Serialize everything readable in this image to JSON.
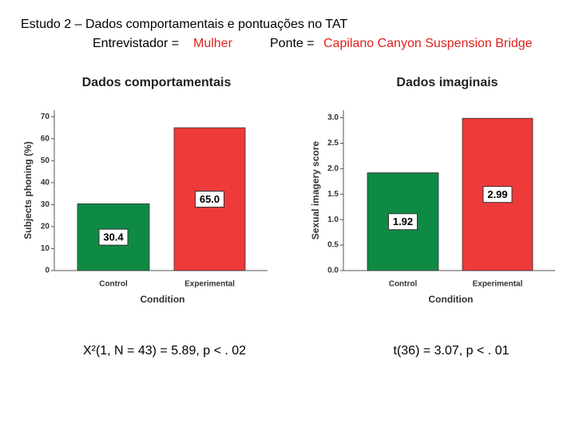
{
  "header": {
    "title": "Estudo 2 – Dados comportamentais e pontuações no TAT",
    "interviewer_label": "Entrevistador =",
    "interviewer": "Mulher",
    "bridge_label": "Ponte =",
    "bridge": "Capilano Canyon Suspension Bridge"
  },
  "chart_data": [
    {
      "type": "bar",
      "title": "Dados comportamentais",
      "y_label": "Subjects phoning (%)",
      "x_label": "Condition",
      "categories": [
        "Control",
        "Experimental"
      ],
      "values": [
        30.4,
        65.0
      ],
      "value_labels": [
        "30.4",
        "65.0"
      ],
      "colors": [
        "#0f8a45",
        "#ef3a3a"
      ],
      "ylim": [
        0,
        73
      ],
      "yticks": [
        0,
        10,
        20,
        30,
        40,
        50,
        60,
        70
      ],
      "stat": "Χ²(1, N = 43) = 5.89, p < . 02"
    },
    {
      "type": "bar",
      "title": "Dados imaginais",
      "y_label": "Sexual imagery score",
      "x_label": "Condition",
      "categories": [
        "Control",
        "Experimental"
      ],
      "values": [
        1.92,
        2.99
      ],
      "value_labels": [
        "1.92",
        "2.99"
      ],
      "colors": [
        "#0f8a45",
        "#ef3a3a"
      ],
      "ylim": [
        0,
        3.15
      ],
      "yticks": [
        {
          "value": 0,
          "label": "0.0"
        },
        0.5,
        {
          "value": 1,
          "label": "1.0"
        },
        1.5,
        {
          "value": 2,
          "label": "2.0"
        },
        2.5,
        {
          "value": 3,
          "label": "3.0"
        }
      ],
      "stat": "t(36) = 3.07, p < . 01"
    }
  ]
}
